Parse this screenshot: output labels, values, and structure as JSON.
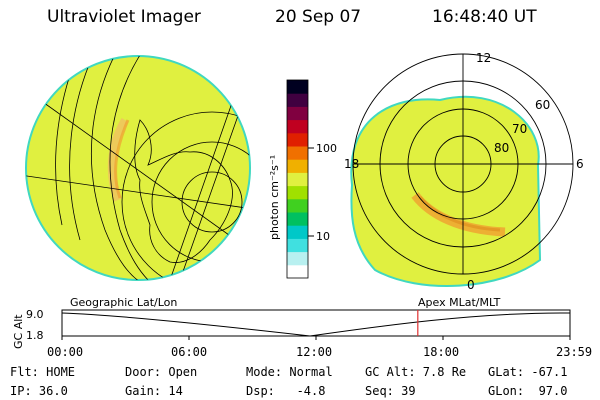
{
  "header": {
    "instrument": "Ultraviolet Imager",
    "date": "20 Sep 07",
    "time": "16:48:40 UT"
  },
  "colorbar": {
    "unit_label": "photon cm⁻²s⁻¹",
    "ticks": [
      "100",
      "10"
    ],
    "colors": [
      "#ffffff",
      "#b8f0f0",
      "#40e0e0",
      "#00c8c8",
      "#00c060",
      "#40d020",
      "#a0e000",
      "#e0f040",
      "#f0b000",
      "#f07000",
      "#e02000",
      "#c00020",
      "#800040",
      "#400040",
      "#000020"
    ]
  },
  "geo_panel": {
    "label": "Geographic Lat/Lon"
  },
  "polar_panel": {
    "label": "Apex MLat/MLT",
    "mlt_labels": {
      "top": "12",
      "left": "18",
      "right": "6",
      "bottom": "0"
    },
    "lat_labels": [
      "60",
      "70",
      "80"
    ]
  },
  "timeline": {
    "ylabel": "GC Alt",
    "ytop": "9.0",
    "ybottom": "1.8",
    "xticks": [
      "00:00",
      "06:00",
      "12:00",
      "18:00",
      "23:59"
    ],
    "current_time_hours": 16.81
  },
  "footer": {
    "flt": "Flt: HOME",
    "door": "Door: Open",
    "mode": "Mode: Normal",
    "gc_alt": "GC Alt: 7.8 Re",
    "glat": "GLat: -67.1",
    "ip": "IP: 36.0",
    "gain": "Gain: 14",
    "dsp": "Dsp:   -4.8",
    "seq": "Seq: 39",
    "glon": "GLon:  97.0"
  },
  "colors": {
    "aurora_fill": "#e0f040",
    "disk_edge": "#40d8c0",
    "timeline_marker": "#e03030"
  }
}
